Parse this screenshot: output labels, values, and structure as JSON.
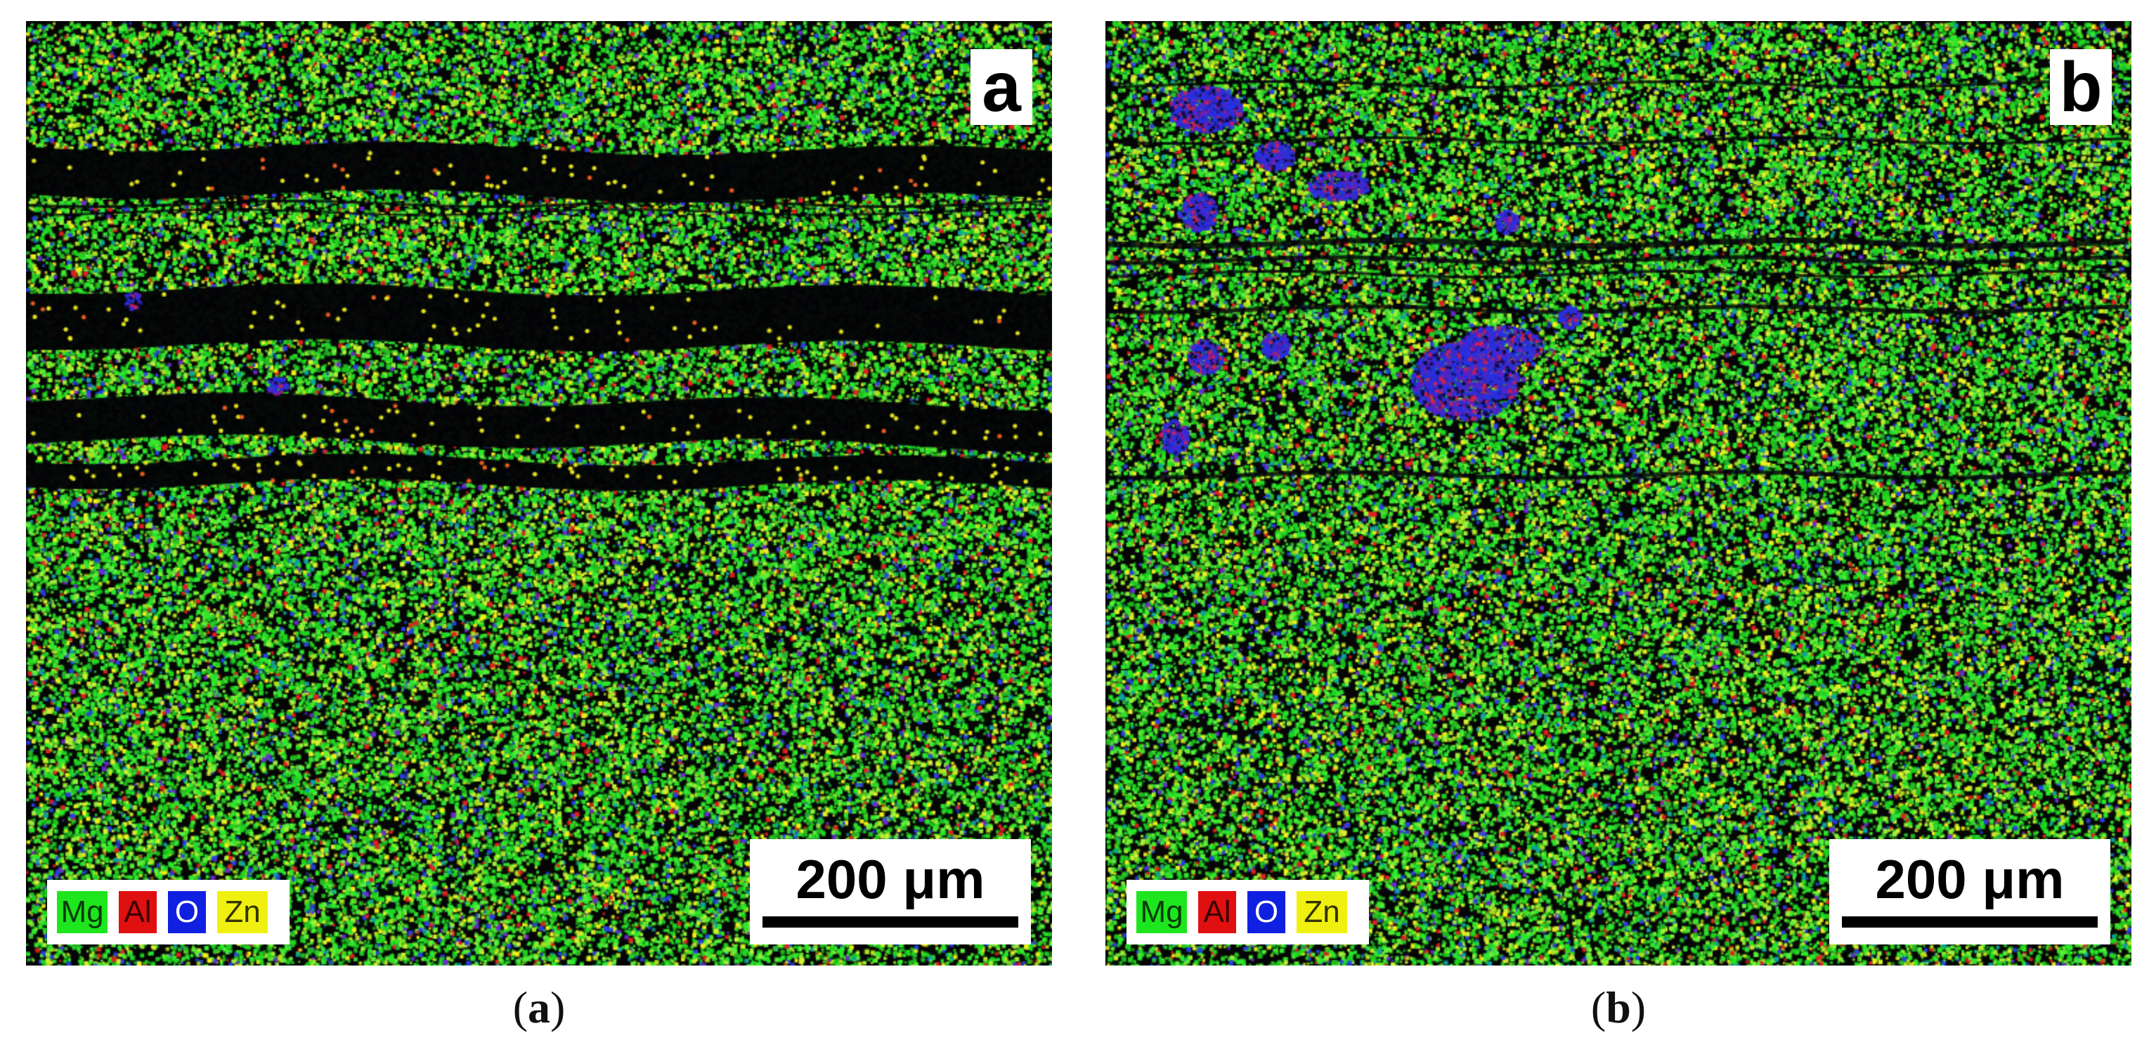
{
  "panels": [
    {
      "id": "a",
      "label": "a",
      "caption_letter": "a",
      "scale_bar": "200 μm",
      "legend": [
        {
          "symbol": "Mg",
          "color": "#1ee61e",
          "text_color": "#0a3a0a"
        },
        {
          "symbol": "Al",
          "color": "#e01010",
          "text_color": "#3a0000"
        },
        {
          "symbol": "O",
          "color": "#1020e0",
          "text_color": "#ffffff"
        },
        {
          "symbol": "Zn",
          "color": "#f0f010",
          "text_color": "#333300"
        }
      ]
    },
    {
      "id": "b",
      "label": "b",
      "caption_letter": "b",
      "scale_bar": "200 μm",
      "legend": [
        {
          "symbol": "Mg",
          "color": "#1ee61e",
          "text_color": "#0a3a0a"
        },
        {
          "symbol": "Al",
          "color": "#e01010",
          "text_color": "#3a0000"
        },
        {
          "symbol": "O",
          "color": "#1020e0",
          "text_color": "#ffffff"
        },
        {
          "symbol": "Zn",
          "color": "#f0f010",
          "text_color": "#333300"
        }
      ]
    }
  ],
  "captions": {
    "open": "(",
    "close": ")"
  }
}
